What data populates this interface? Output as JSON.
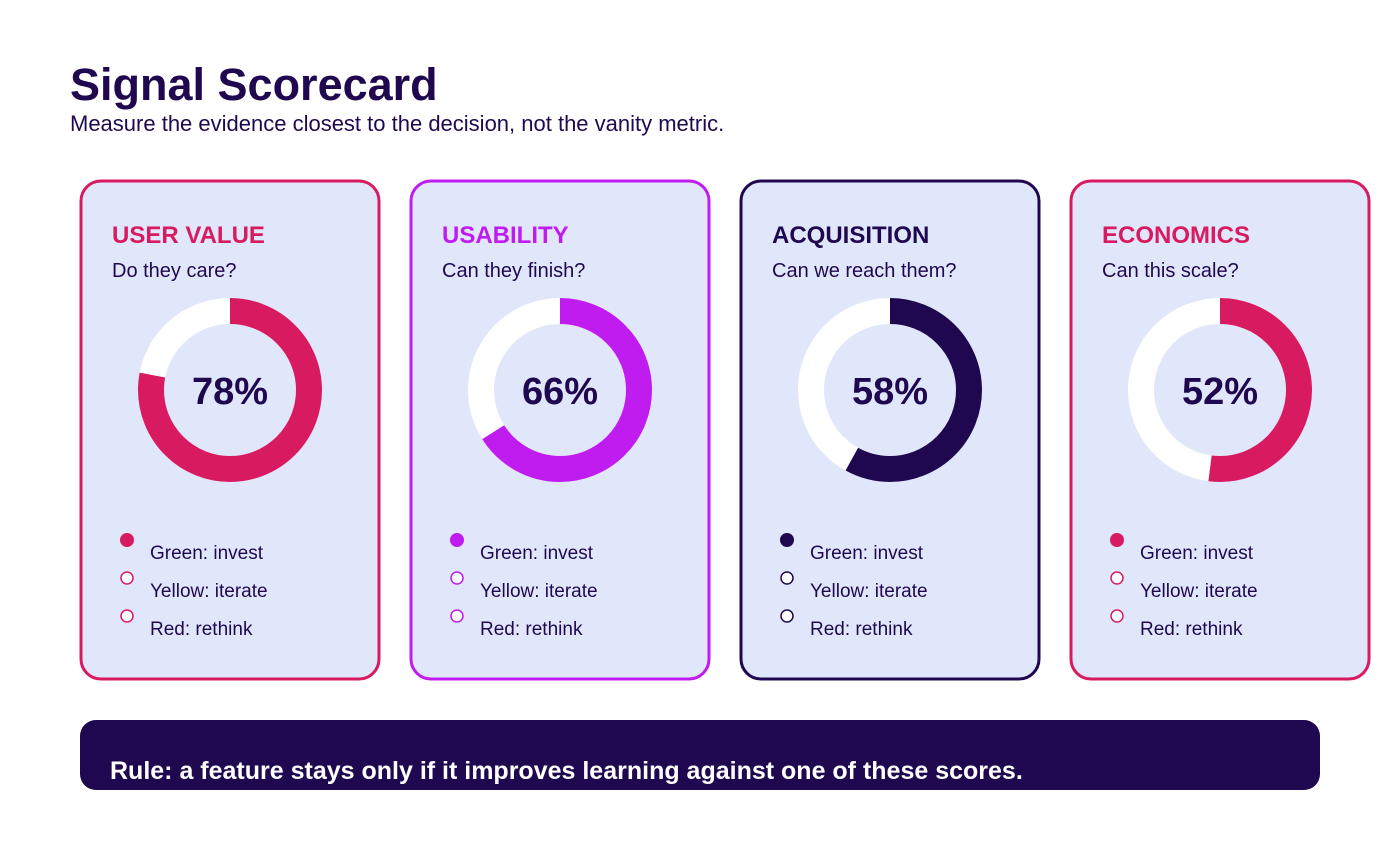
{
  "header": {
    "title": "Signal Scorecard",
    "subtitle": "Measure the evidence closest to the decision, not the vanity metric."
  },
  "cards": [
    {
      "heading": "USER VALUE",
      "question": "Do they care?",
      "value": 78,
      "value_label": "78%",
      "color": "#d81b60"
    },
    {
      "heading": "USABILITY",
      "question": "Can they finish?",
      "value": 66,
      "value_label": "66%",
      "color": "#c01cf0"
    },
    {
      "heading": "ACQUISITION",
      "question": "Can we reach them?",
      "value": 58,
      "value_label": "58%",
      "color": "#200850"
    },
    {
      "heading": "ECONOMICS",
      "question": "Can this scale?",
      "value": 52,
      "value_label": "52%",
      "color": "#d81b60"
    }
  ],
  "legend": [
    "Green: invest",
    "Yellow: iterate",
    "Red: rethink"
  ],
  "footer": {
    "rule": "Rule: a feature stays only if it improves learning against one of these scores."
  }
}
